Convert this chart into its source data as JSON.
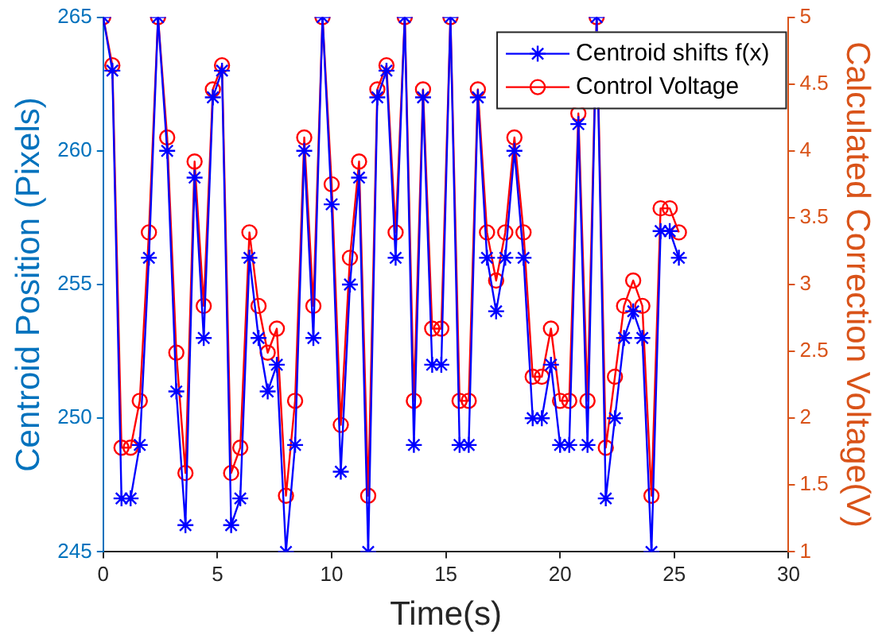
{
  "chart_data": {
    "type": "line",
    "xlabel": "Time(s)",
    "ylabel": "Centroid Position (Pixels)",
    "y2label": "Calculated Correction Voltage(V)",
    "x": [
      0,
      0.4,
      0.8,
      1.2,
      1.6,
      2.0,
      2.4,
      2.8,
      3.2,
      3.6,
      4.0,
      4.4,
      4.8,
      5.2,
      5.6,
      6.0,
      6.4,
      6.8,
      7.2,
      7.6,
      8.0,
      8.4,
      8.8,
      9.2,
      9.6,
      10.0,
      10.4,
      10.8,
      11.2,
      11.6,
      12.0,
      12.4,
      12.8,
      13.2,
      13.6,
      14.0,
      14.4,
      14.8,
      15.2,
      15.6,
      16.0,
      16.4,
      16.8,
      17.2,
      17.6,
      18.0,
      18.4,
      18.8,
      19.2,
      19.6,
      20.0,
      20.4,
      20.8,
      21.2,
      21.6,
      22.0,
      22.4,
      22.8,
      23.2,
      23.6,
      24.0,
      24.4,
      24.8,
      25.2
    ],
    "series": [
      {
        "name": "Centroid shifts f(x)",
        "color": "#0000ff",
        "marker": "cross",
        "values": [
          265,
          263,
          247,
          247,
          249,
          256,
          265,
          260,
          251,
          246,
          259,
          253,
          262,
          263,
          246,
          247,
          256,
          253,
          251,
          252,
          245,
          249,
          260,
          253,
          265,
          258,
          248,
          255,
          259,
          245,
          262,
          263,
          256,
          265,
          249,
          262,
          252,
          252,
          265,
          249,
          249,
          262,
          256,
          254,
          256,
          260,
          256,
          250,
          250,
          252,
          249,
          249,
          261,
          249,
          265,
          247,
          250,
          253,
          254,
          253,
          245,
          257,
          257,
          256
        ]
      },
      {
        "name": "Control Voltage",
        "color": "#ff0000",
        "marker": "circle",
        "axis": "y2",
        "values": [
          5,
          4.64,
          1.78,
          1.78,
          2.13,
          3.39,
          5,
          4.1,
          2.49,
          1.59,
          3.92,
          2.84,
          4.46,
          4.64,
          1.59,
          1.78,
          3.39,
          2.84,
          2.49,
          2.67,
          1.42,
          2.13,
          4.1,
          2.84,
          5,
          3.75,
          1.95,
          3.2,
          3.92,
          1.42,
          4.46,
          4.64,
          3.39,
          5,
          2.13,
          4.46,
          2.67,
          2.67,
          5,
          2.13,
          2.13,
          4.46,
          3.39,
          3.03,
          3.39,
          4.1,
          3.39,
          2.31,
          2.31,
          2.67,
          2.13,
          2.13,
          4.28,
          2.13,
          5,
          1.78,
          2.31,
          2.84,
          3.03,
          2.84,
          1.42,
          3.57,
          3.57,
          3.39
        ]
      }
    ],
    "xlim": [
      0,
      30
    ],
    "xticks": [
      0,
      5,
      10,
      15,
      20,
      25,
      30
    ],
    "ylim": [
      245,
      265
    ],
    "yticks": [
      245,
      250,
      255,
      260,
      265
    ],
    "y2lim": [
      1,
      5
    ],
    "y2ticks": [
      1,
      1.5,
      2,
      2.5,
      3,
      3.5,
      4,
      4.5,
      5
    ],
    "legend": "top right",
    "grid": false,
    "line_style": "solid"
  }
}
